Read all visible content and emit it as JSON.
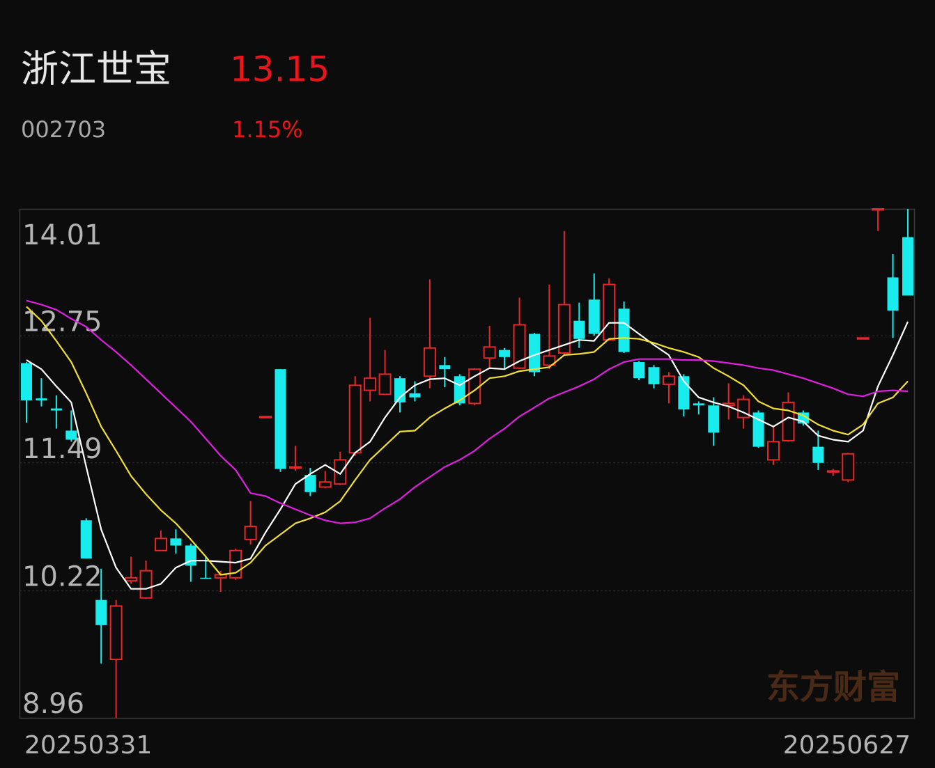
{
  "header": {
    "name": "浙江世宝",
    "price": "13.15",
    "code": "002703",
    "change": "1.15%"
  },
  "watermark": "东方财富",
  "chart_data": {
    "type": "candlestick",
    "categories": [
      "20250331",
      null,
      null,
      null,
      null,
      null,
      null,
      null,
      null,
      null,
      null,
      null,
      null,
      null,
      null,
      null,
      null,
      null,
      null,
      null,
      null,
      null,
      null,
      null,
      null,
      null,
      null,
      null,
      null,
      null,
      null,
      null,
      null,
      null,
      null,
      null,
      null,
      null,
      null,
      null,
      null,
      null,
      null,
      null,
      null,
      null,
      null,
      null,
      null,
      null,
      null,
      null,
      null,
      null,
      null,
      null,
      null,
      null,
      null,
      "20250627"
    ],
    "open": [
      12.48,
      12.13,
      12.03,
      11.81,
      10.92,
      10.13,
      9.54,
      10.32,
      10.15,
      10.62,
      10.74,
      10.67,
      10.35,
      10.35,
      10.35,
      10.73,
      11.94,
      12.42,
      11.44,
      11.37,
      11.25,
      11.28,
      11.59,
      12.21,
      12.17,
      12.33,
      12.18,
      12.35,
      12.46,
      12.35,
      12.08,
      12.53,
      12.61,
      12.43,
      12.77,
      12.46,
      12.58,
      12.9,
      13.11,
      12.71,
      13.02,
      12.49,
      12.44,
      12.27,
      12.35,
      12.08,
      12.06,
      12.06,
      11.94,
      11.99,
      11.52,
      11.71,
      11.99,
      11.65,
      11.4,
      11.32,
      12.73,
      14.01,
      13.33,
      13.73
    ],
    "high": [
      12.49,
      12.33,
      12.16,
      12.01,
      10.94,
      10.44,
      10.13,
      10.56,
      10.52,
      10.82,
      10.83,
      10.69,
      10.56,
      10.42,
      10.64,
      11.11,
      11.95,
      12.42,
      11.66,
      11.44,
      11.41,
      11.6,
      12.35,
      12.93,
      12.61,
      12.35,
      12.3,
      13.31,
      12.54,
      12.37,
      12.43,
      12.85,
      12.63,
      13.13,
      12.78,
      13.26,
      13.79,
      13.08,
      13.37,
      13.32,
      13.09,
      12.5,
      12.46,
      12.39,
      12.37,
      12.1,
      12.14,
      12.28,
      12.16,
      12.01,
      11.85,
      12.19,
      12.01,
      11.81,
      11.43,
      11.59,
      12.73,
      14.01,
      13.56,
      14.01
    ],
    "low": [
      11.89,
      12.05,
      11.83,
      11.7,
      10.54,
      9.5,
      8.96,
      10.29,
      10.14,
      10.62,
      10.59,
      10.31,
      10.34,
      10.21,
      10.33,
      10.68,
      11.94,
      11.4,
      11.41,
      11.16,
      11.24,
      11.27,
      11.56,
      12.1,
      12.16,
      11.99,
      12.1,
      12.23,
      12.24,
      12.06,
      12.06,
      12.42,
      12.42,
      12.42,
      12.35,
      12.42,
      12.56,
      12.63,
      12.75,
      12.7,
      12.58,
      12.31,
      12.23,
      12.08,
      11.95,
      11.97,
      11.66,
      11.92,
      11.83,
      11.64,
      11.47,
      11.7,
      11.86,
      11.42,
      11.36,
      11.3,
      12.73,
      13.79,
      12.73,
      13.15
    ],
    "close": [
      12.11,
      12.11,
      12.01,
      11.72,
      10.54,
      9.88,
      10.07,
      10.35,
      10.42,
      10.74,
      10.67,
      10.47,
      10.34,
      10.38,
      10.62,
      10.86,
      11.95,
      11.43,
      11.45,
      11.2,
      11.3,
      11.52,
      12.26,
      12.33,
      12.37,
      12.09,
      12.14,
      12.63,
      12.42,
      12.08,
      12.42,
      12.64,
      12.54,
      12.86,
      12.39,
      12.55,
      13.06,
      12.72,
      12.77,
      13.26,
      12.59,
      12.33,
      12.27,
      12.35,
      12.02,
      12.06,
      11.79,
      12.08,
      12.12,
      11.65,
      11.7,
      12.09,
      11.88,
      11.49,
      11.41,
      11.58,
      12.73,
      14.01,
      13.0,
      13.15
    ],
    "up_color": "#e8262a",
    "down_color": "#19ecec",
    "series": [
      {
        "color": "#ffffff",
        "values": [
          12.51,
          12.42,
          12.25,
          12.09,
          11.45,
          10.83,
          10.45,
          10.24,
          10.24,
          10.29,
          10.45,
          10.52,
          10.52,
          10.51,
          10.5,
          10.54,
          10.8,
          11.03,
          11.28,
          11.38,
          11.47,
          11.38,
          11.59,
          11.7,
          11.94,
          12.14,
          12.26,
          12.32,
          12.33,
          12.26,
          12.35,
          12.43,
          12.42,
          12.5,
          12.56,
          12.61,
          12.66,
          12.71,
          12.7,
          12.88,
          12.88,
          12.77,
          12.66,
          12.56,
          12.3,
          12.14,
          12.09,
          12.05,
          11.99,
          11.92,
          11.85,
          11.94,
          11.9,
          11.76,
          11.72,
          11.7,
          11.81,
          12.25,
          12.56,
          12.89
        ]
      },
      {
        "color": "#f2e030",
        "values": [
          13.04,
          12.9,
          12.7,
          12.49,
          12.18,
          11.85,
          11.61,
          11.36,
          11.18,
          11.02,
          10.89,
          10.73,
          10.56,
          10.38,
          10.4,
          10.5,
          10.67,
          10.78,
          10.89,
          10.94,
          11.0,
          11.11,
          11.32,
          11.52,
          11.66,
          11.8,
          11.81,
          11.94,
          12.03,
          12.11,
          12.21,
          12.33,
          12.35,
          12.4,
          12.42,
          12.44,
          12.56,
          12.57,
          12.59,
          12.72,
          12.73,
          12.72,
          12.68,
          12.63,
          12.59,
          12.54,
          12.43,
          12.35,
          12.26,
          12.1,
          12.03,
          12.01,
          11.96,
          11.87,
          11.81,
          11.77,
          11.87,
          12.08,
          12.14,
          12.3
        ]
      },
      {
        "color": "#e020e0",
        "values": [
          13.1,
          13.06,
          13.01,
          12.92,
          12.84,
          12.71,
          12.59,
          12.46,
          12.32,
          12.18,
          12.04,
          11.9,
          11.73,
          11.56,
          11.42,
          11.19,
          11.16,
          11.09,
          11.03,
          10.97,
          10.92,
          10.89,
          10.9,
          10.94,
          11.04,
          11.13,
          11.25,
          11.35,
          11.45,
          11.52,
          11.61,
          11.73,
          11.83,
          11.95,
          12.04,
          12.13,
          12.19,
          12.25,
          12.32,
          12.42,
          12.49,
          12.52,
          12.52,
          12.52,
          12.51,
          12.51,
          12.5,
          12.48,
          12.46,
          12.43,
          12.41,
          12.37,
          12.33,
          12.28,
          12.23,
          12.17,
          12.15,
          12.2,
          12.21,
          12.2
        ]
      }
    ],
    "ylim": [
      8.96,
      14.01
    ],
    "yticks": [
      14.01,
      12.75,
      11.49,
      10.22,
      8.96
    ],
    "grid": true
  }
}
